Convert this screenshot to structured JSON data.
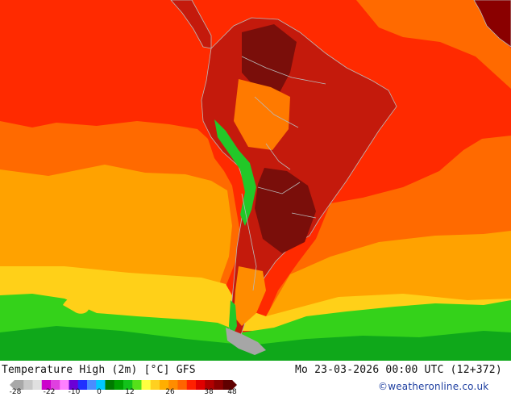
{
  "map": {
    "title": "Temperature High (2m) [°C] GFS",
    "datetime": "Mo 23-03-2026 00:00 UTC (12+372)",
    "credit": "©weatheronline.co.uk",
    "legend": {
      "tick_labels": [
        "-28",
        "-22",
        "-10",
        "0",
        "12",
        "26",
        "38",
        "48"
      ],
      "colors": [
        "#a8a8a8",
        "#c8c8c8",
        "#e0e0e0",
        "#cc00cc",
        "#e040e0",
        "#ff80ff",
        "#6b00d6",
        "#2030ff",
        "#4a8cff",
        "#00c8ff",
        "#007a00",
        "#00a000",
        "#12c21a",
        "#55e01a",
        "#ffff40",
        "#ffd020",
        "#ffae00",
        "#ff8c00",
        "#ff6400",
        "#ff2000",
        "#e00000",
        "#b00000",
        "#8a0000",
        "#600000"
      ]
    },
    "palette": {
      "ocean_warm": "#ff2a00",
      "ocean_mild": "#ff6a00",
      "ocean_cool": "#ffa200",
      "ocean_yellow": "#ffd018",
      "cold_green": "#34d21a",
      "deep_green": "#0fa81a",
      "land_hot": "#c41a0c",
      "land_very_hot": "#7a0e0a",
      "andes_green": "#22c828",
      "ice_grey": "#a6a6a6",
      "border": "#b9b9b9"
    }
  }
}
